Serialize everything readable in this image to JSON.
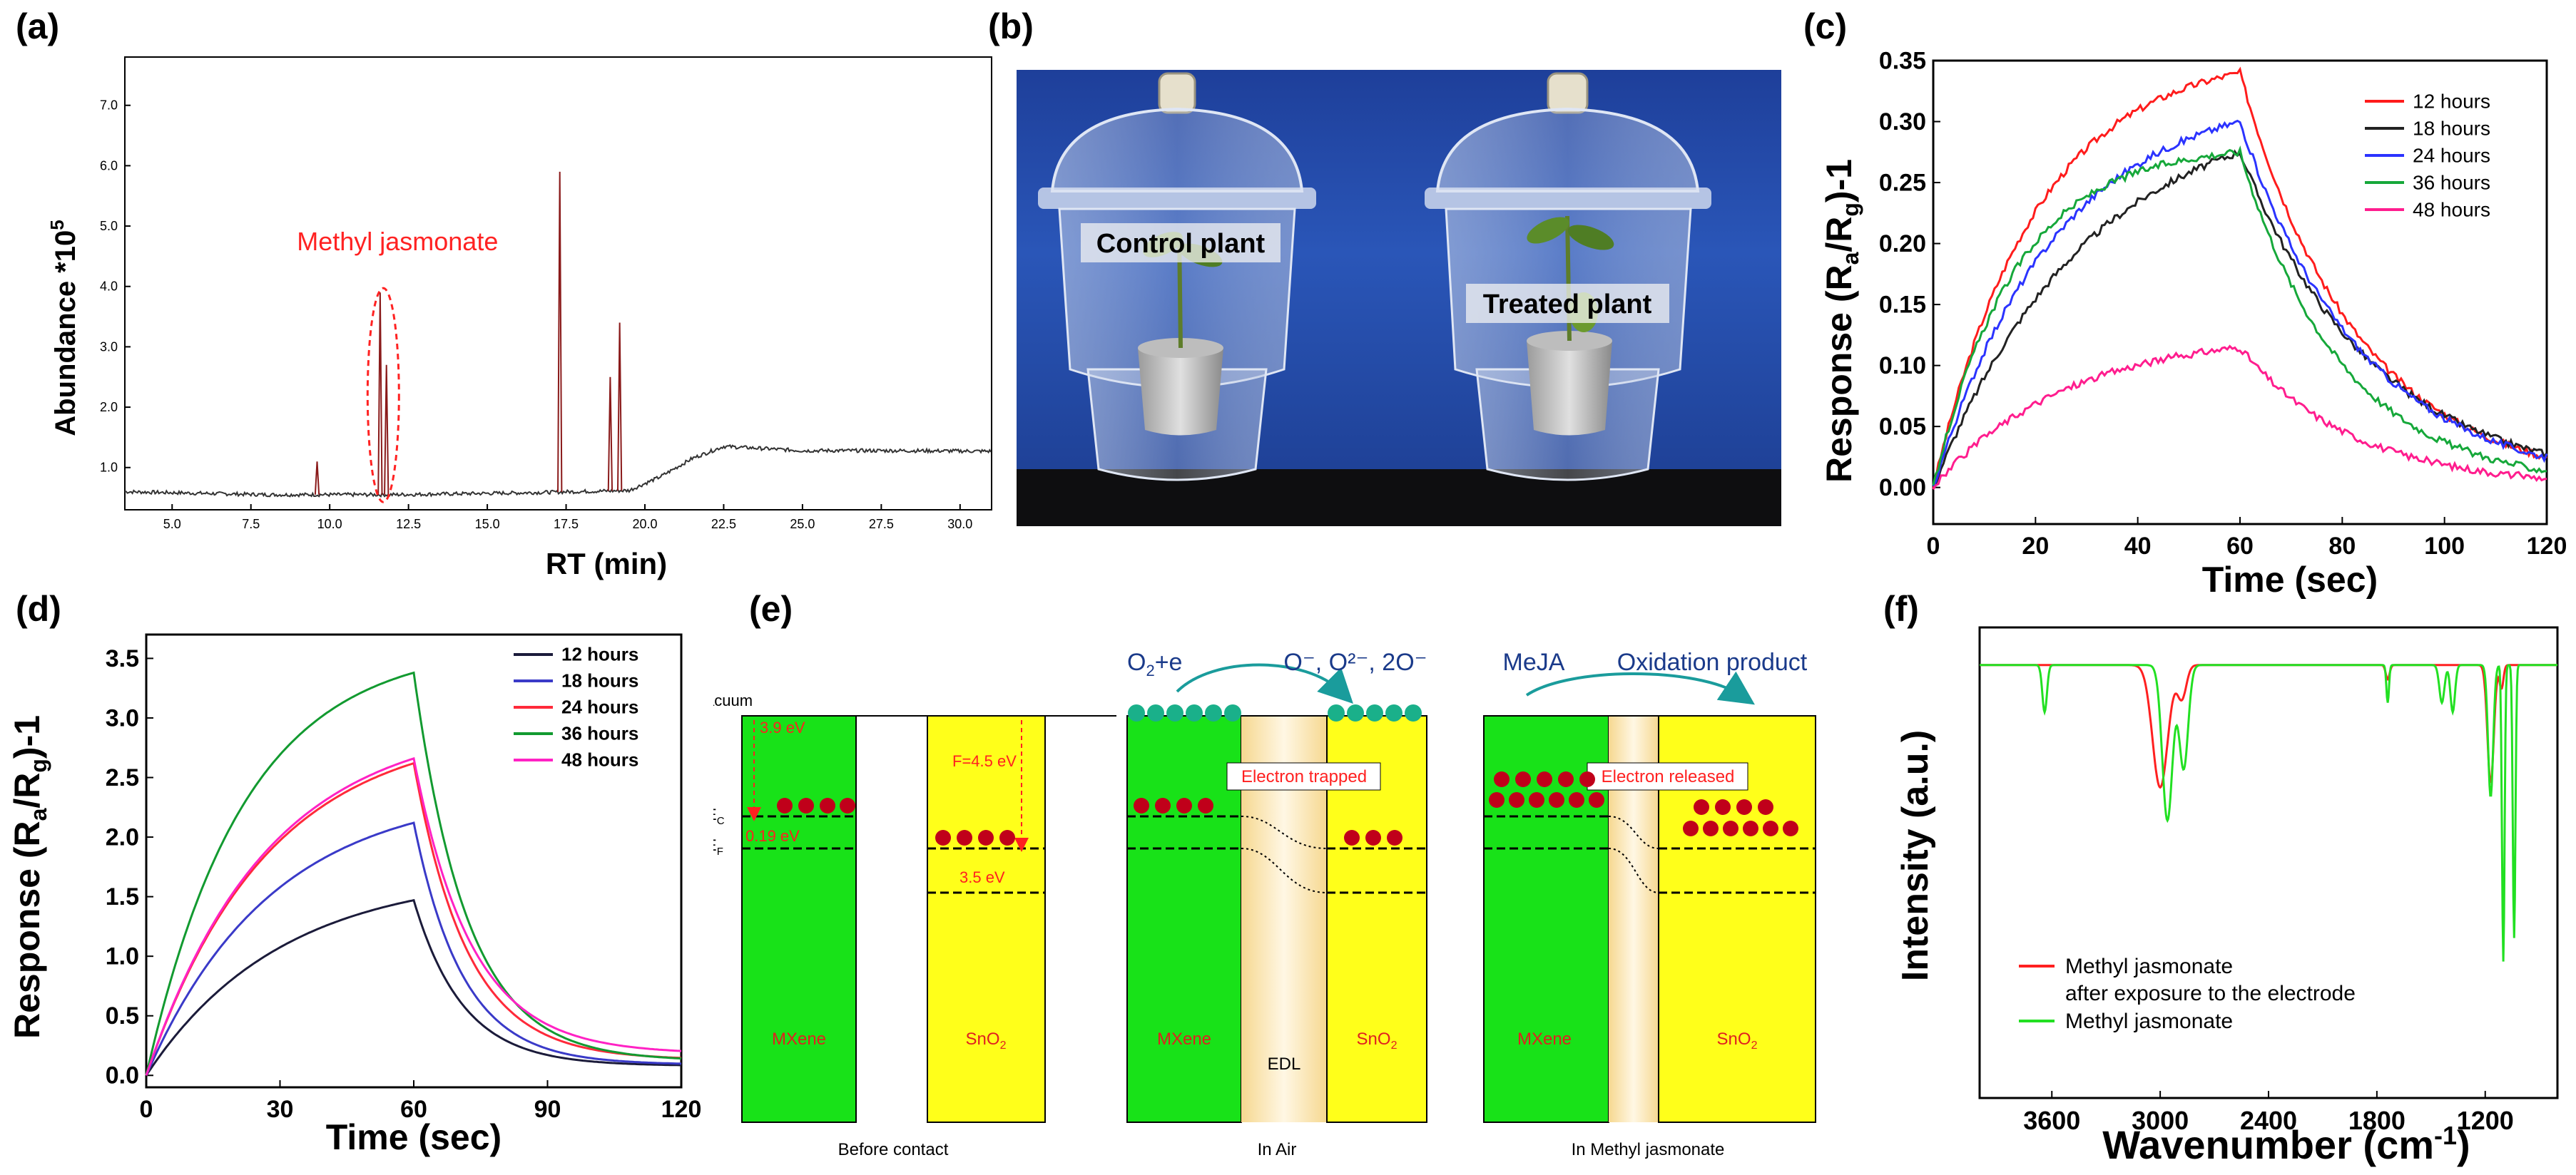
{
  "panel_labels": {
    "a": "(a)",
    "b": "(b)",
    "c": "(c)",
    "d": "(d)",
    "e": "(e)",
    "f": "(f)"
  },
  "chart_data": [
    {
      "id": "a",
      "type": "line",
      "title": "",
      "xlabel": "RT (min)",
      "ylabel": "Abundance *10^5",
      "ylabel_main": "Abundance *10",
      "ylabel_sup": "5",
      "xlim": [
        3.5,
        31.0
      ],
      "ylim": [
        0.3,
        7.8
      ],
      "xticks": [
        5.0,
        7.5,
        10.0,
        12.5,
        15.0,
        17.5,
        20.0,
        22.5,
        25.0,
        27.5,
        30.0
      ],
      "xtick_labels": [
        "5.0",
        "7.5",
        "10.0",
        "12.5",
        "15.0",
        "17.5",
        "20.0",
        "22.5",
        "25.0",
        "27.5",
        "30.0"
      ],
      "yticks": [
        1.0,
        2.0,
        3.0,
        4.0,
        5.0,
        6.0,
        7.0
      ],
      "ytick_labels": [
        "1.0",
        "2.0",
        "3.0",
        "4.0",
        "5.0",
        "6.0",
        "7.0"
      ],
      "annotation": "Methyl jasmonate",
      "annotation_x": 11.7,
      "peaks": [
        {
          "x": 9.6,
          "y": 1.1
        },
        {
          "x": 11.6,
          "y": 3.9
        },
        {
          "x": 11.8,
          "y": 2.7
        },
        {
          "x": 17.3,
          "y": 5.9
        },
        {
          "x": 18.9,
          "y": 2.5
        },
        {
          "x": 19.2,
          "y": 3.4
        }
      ],
      "baseline": [
        [
          3.5,
          0.6
        ],
        [
          8.0,
          0.55
        ],
        [
          12.0,
          0.55
        ],
        [
          16.0,
          0.58
        ],
        [
          19.5,
          0.62
        ],
        [
          20.5,
          0.85
        ],
        [
          21.5,
          1.15
        ],
        [
          22.5,
          1.35
        ],
        [
          25.0,
          1.28
        ],
        [
          28.0,
          1.28
        ],
        [
          31.0,
          1.27
        ]
      ]
    },
    {
      "id": "c",
      "type": "line",
      "xlabel": "Time (sec)",
      "ylabel": "Response (Ra/Rg)-1",
      "xlim": [
        0,
        120
      ],
      "ylim": [
        -0.03,
        0.35
      ],
      "xticks": [
        0,
        20,
        40,
        60,
        80,
        100,
        120
      ],
      "xtick_labels": [
        "0",
        "20",
        "40",
        "60",
        "80",
        "100",
        "120"
      ],
      "yticks": [
        0.0,
        0.05,
        0.1,
        0.15,
        0.2,
        0.25,
        0.3,
        0.35
      ],
      "ytick_labels": [
        "0.00",
        "0.05",
        "0.10",
        "0.15",
        "0.20",
        "0.25",
        "0.30",
        "0.35"
      ],
      "legend_position": "top-right",
      "series": [
        {
          "name": "12 hours",
          "color": "#ff1c1c",
          "peak": 0.34,
          "tau_rise": 20,
          "tau_decay": 23
        },
        {
          "name": "18 hours",
          "color": "#222222",
          "peak": 0.275,
          "tau_rise": 30,
          "tau_decay": 26
        },
        {
          "name": "24 hours",
          "color": "#2b33ff",
          "peak": 0.3,
          "tau_rise": 24,
          "tau_decay": 24
        },
        {
          "name": "36 hours",
          "color": "#16a83a",
          "peak": 0.275,
          "tau_rise": 16,
          "tau_decay": 20
        },
        {
          "name": "48 hours",
          "color": "#ff1d8e",
          "peak": 0.115,
          "tau_rise": 26,
          "tau_decay": 22
        }
      ]
    },
    {
      "id": "d",
      "type": "line",
      "xlabel": "Time (sec)",
      "ylabel": "Response (Ra/Rg)-1",
      "xlim": [
        0,
        120
      ],
      "ylim": [
        -0.1,
        3.7
      ],
      "xticks": [
        0,
        30,
        60,
        90,
        120
      ],
      "xtick_labels": [
        "0",
        "30",
        "60",
        "90",
        "120"
      ],
      "yticks": [
        0.0,
        0.5,
        1.0,
        1.5,
        2.0,
        2.5,
        3.0,
        3.5
      ],
      "ytick_labels": [
        "0.0",
        "0.5",
        "1.0",
        "1.5",
        "2.0",
        "2.5",
        "3.0",
        "3.5"
      ],
      "legend_position": "top-right",
      "series": [
        {
          "name": "12 hours",
          "color": "#1b1b3a",
          "peak": 1.47,
          "tau_rise": 30,
          "tau_decay": 11,
          "floor": 0.08
        },
        {
          "name": "18 hours",
          "color": "#3a3ac8",
          "peak": 2.12,
          "tau_rise": 28,
          "tau_decay": 11,
          "floor": 0.09
        },
        {
          "name": "24 hours",
          "color": "#ff2a3a",
          "peak": 2.62,
          "tau_rise": 27,
          "tau_decay": 12,
          "floor": 0.13
        },
        {
          "name": "36 hours",
          "color": "#129a30",
          "peak": 3.38,
          "tau_rise": 22,
          "tau_decay": 12,
          "floor": 0.12
        },
        {
          "name": "48 hours",
          "color": "#ff22c4",
          "peak": 2.66,
          "tau_rise": 27,
          "tau_decay": 13,
          "floor": 0.18
        }
      ]
    },
    {
      "id": "f",
      "type": "line",
      "xlabel": "Wavenumber (cm-1)",
      "ylabel": "Intensity (a.u.)",
      "xlim": [
        4000,
        800
      ],
      "ylim": [
        0,
        1
      ],
      "xticks": [
        3600,
        3000,
        2400,
        1800,
        1200
      ],
      "xtick_labels": [
        "3600",
        "3000",
        "2400",
        "1800",
        "1200"
      ],
      "legend_position": "bottom-left",
      "series": [
        {
          "name": "Methyl jasmonate\nafter exposure to the electrode",
          "label_line1": "Methyl jasmonate",
          "label_line2": "after exposure to the electrode",
          "color": "#ff2020",
          "dips": [
            [
              3000,
              0.26,
              60
            ],
            [
              2880,
              0.07,
              35
            ],
            [
              1740,
              0.03,
              15
            ],
            [
              1170,
              0.25,
              25
            ],
            [
              1110,
              0.05,
              15
            ]
          ]
        },
        {
          "name": "Methyl jasmonate",
          "label_line1": "Methyl jasmonate",
          "color": "#22e022",
          "dips": [
            [
              3640,
              0.1,
              18
            ],
            [
              2960,
              0.33,
              40
            ],
            [
              2870,
              0.22,
              35
            ],
            [
              1740,
              0.08,
              10
            ],
            [
              1440,
              0.08,
              20
            ],
            [
              1380,
              0.1,
              18
            ],
            [
              1170,
              0.28,
              20
            ],
            [
              1100,
              0.63,
              10
            ],
            [
              1040,
              0.58,
              10
            ]
          ]
        }
      ]
    }
  ],
  "photo": {
    "left_label": "Control plant",
    "right_label": "Treated plant"
  },
  "band_diagram": {
    "vacuum": "Vacuum",
    "ec": "E",
    "ec_sub": "C",
    "ef": "E",
    "ef_sub": "F",
    "gap_39": "3.9 eV",
    "gap_019": "0.19 eV",
    "gap_45": "F=4.5 eV",
    "gap_35": "3.5 eV",
    "mxene": "MXene",
    "sno2": "SnO",
    "sno2_sub": "2",
    "edl": "EDL",
    "o2e": "O",
    "o2e_sub": "2",
    "o2e_tail": "+e",
    "oxygen_species": "O⁻, O²⁻, 2O⁻",
    "meja": "MeJA",
    "oxidation_product": "Oxidation product",
    "electron_trapped": "Electron trapped",
    "electron_released": "Electron released",
    "caption_before": "Before contact",
    "caption_air": "In Air",
    "caption_meja": "In Methyl jasmonate"
  }
}
